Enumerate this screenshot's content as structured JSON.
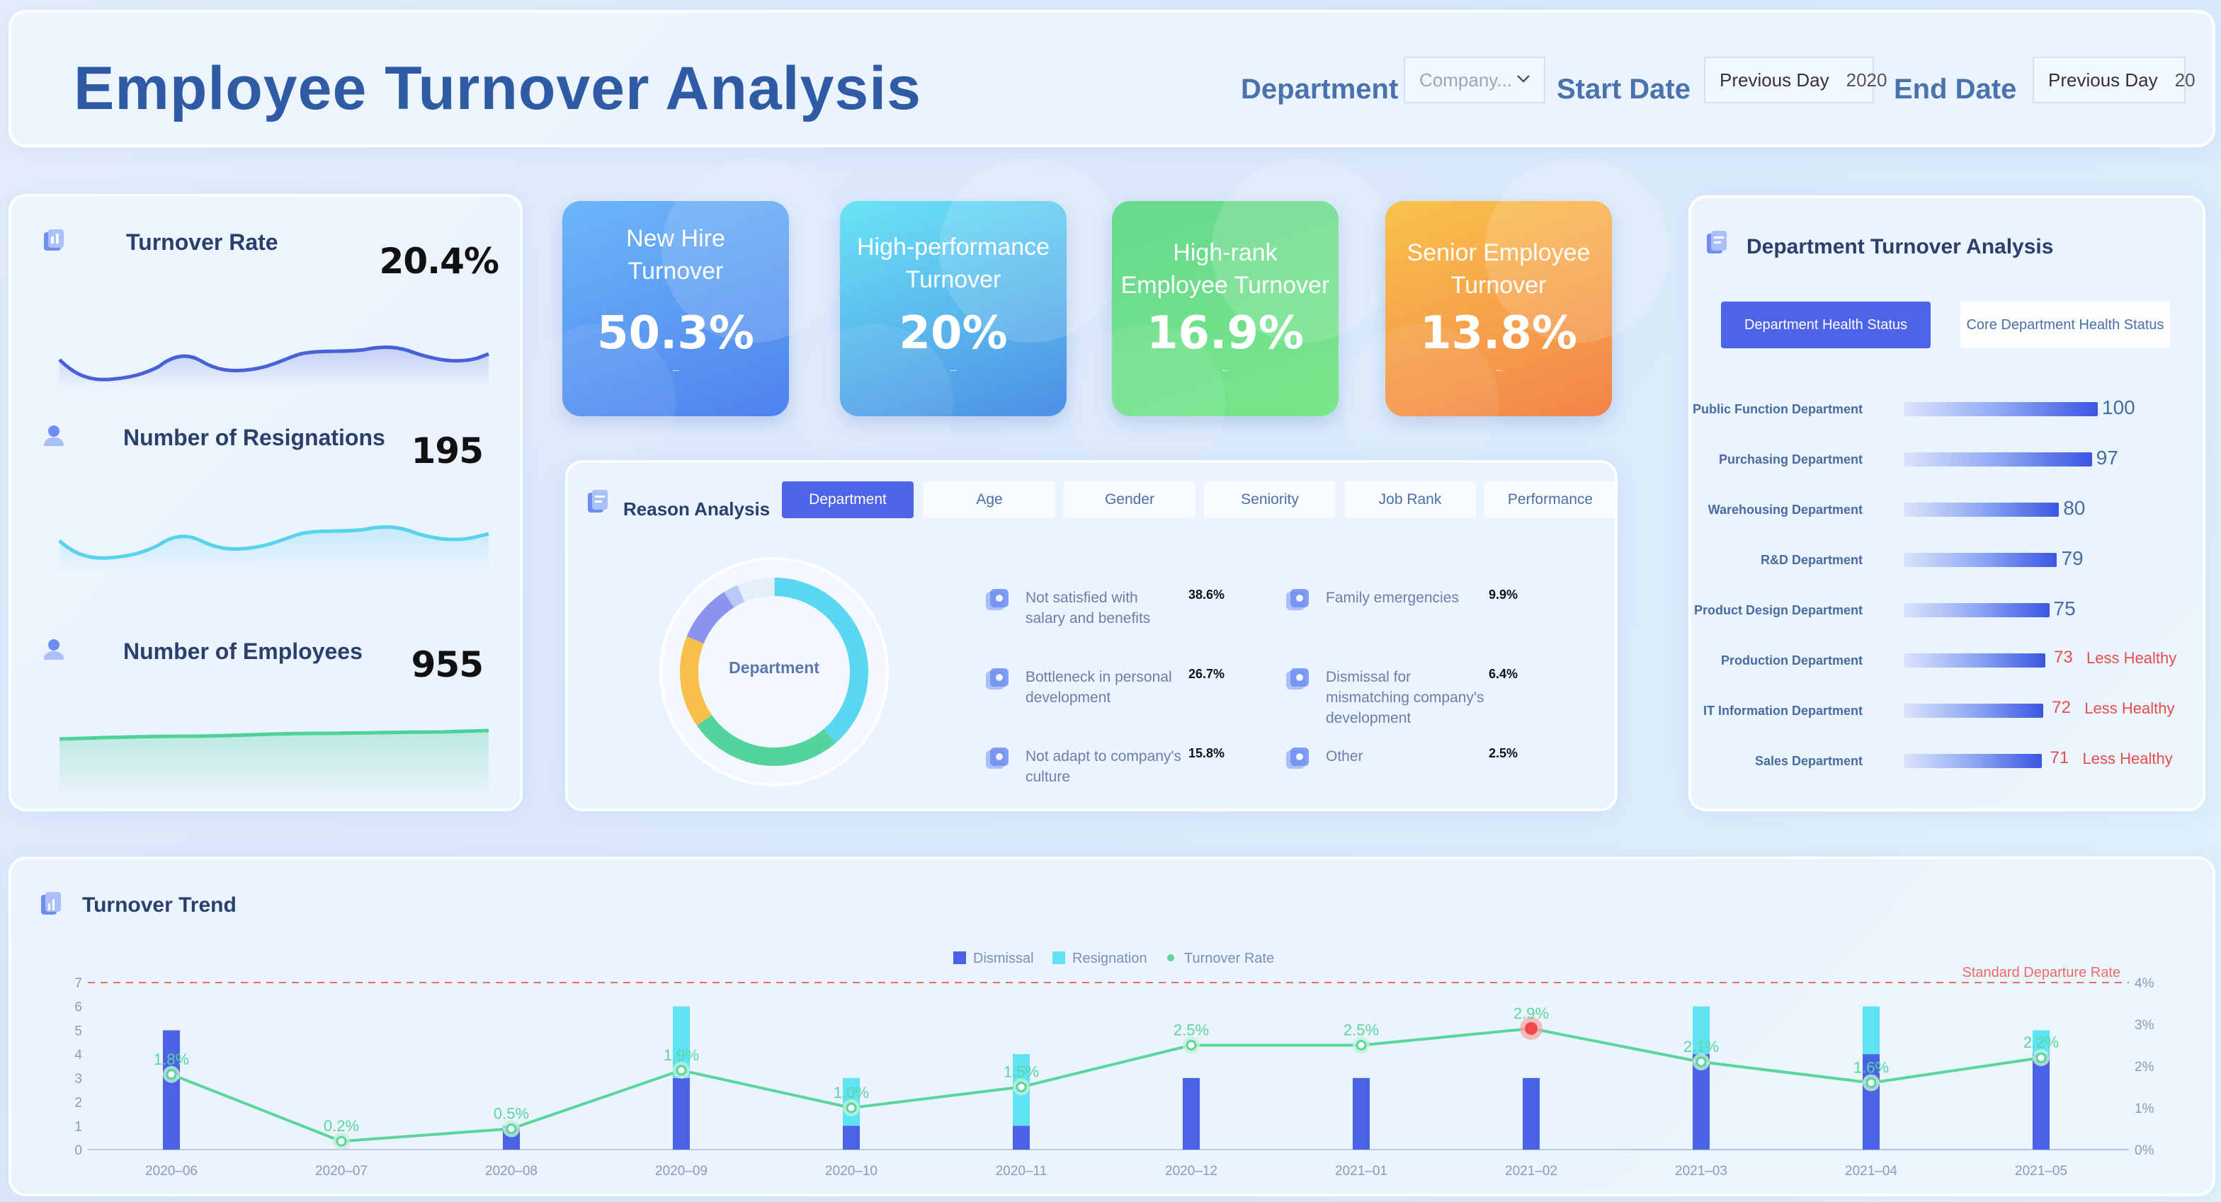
{
  "header": {
    "title": "Employee Turnover Analysis",
    "department_label": "Department",
    "department_value": "Company...",
    "start_label": "Start Date",
    "start_value": "Previous Day",
    "start_sub": "2020",
    "end_label": "End Date",
    "end_value": "Previous Day",
    "end_sub": "20"
  },
  "metrics": [
    {
      "label": "Turnover Rate",
      "value": "20.4%",
      "color": "#4961d8"
    },
    {
      "label": "Number of Resignations",
      "value": "195",
      "color": "#57d3ee"
    },
    {
      "label": "Number of Employees",
      "value": "955",
      "color": "#4cd39a"
    }
  ],
  "kpis": [
    {
      "title1": "New Hire",
      "title2": "Turnover",
      "value": "50.3%",
      "dash": "--"
    },
    {
      "title1": "High-performance",
      "title2": "Turnover",
      "value": "20%",
      "dash": "--"
    },
    {
      "title1": "High-rank",
      "title2": "Employee Turnover",
      "value": "16.9%",
      "dash": "--"
    },
    {
      "title1": "Senior Employee",
      "title2": "Turnover",
      "value": "13.8%",
      "dash": "--"
    }
  ],
  "reason": {
    "title": "Reason Analysis",
    "tabs": [
      "Department",
      "Age",
      "Gender",
      "Seniority",
      "Job Rank",
      "Performance"
    ],
    "active_tab": "Department",
    "donut_label": "Department",
    "items": [
      {
        "line1": "Not satisfied with",
        "line2": "salary and benefits",
        "line3": "",
        "pct": "38.6%",
        "icon": "money-bag-icon"
      },
      {
        "line1": "Family emergencies",
        "line2": "",
        "line3": "",
        "pct": "9.9%",
        "icon": "house-icon"
      },
      {
        "line1": "Bottleneck in personal",
        "line2": "development",
        "line3": "",
        "pct": "26.7%",
        "icon": "user-card-icon"
      },
      {
        "line1": "Dismissal for",
        "line2": "mismatching company's",
        "line3": "development",
        "pct": "6.4%",
        "icon": "document-icon"
      },
      {
        "line1": "Not adapt to company's",
        "line2": "culture",
        "line3": "",
        "pct": "15.8%",
        "icon": "building-icon"
      },
      {
        "line1": "Other",
        "line2": "",
        "line3": "",
        "pct": "2.5%",
        "icon": "grid-icon"
      }
    ]
  },
  "department": {
    "title": "Department Turnover Analysis",
    "tab_active": "Department Health Status",
    "tab_other": "Core Department Health Status",
    "less_healthy_label": "Less Healthy",
    "rows": [
      {
        "name": "Public Function Department",
        "value": 100,
        "healthy": true
      },
      {
        "name": "Purchasing Department",
        "value": 97,
        "healthy": true
      },
      {
        "name": "Warehousing Department",
        "value": 80,
        "healthy": true
      },
      {
        "name": "R&D Department",
        "value": 79,
        "healthy": true
      },
      {
        "name": "Product Design Department",
        "value": 75,
        "healthy": true
      },
      {
        "name": "Production Department",
        "value": 73,
        "healthy": false
      },
      {
        "name": "IT Information Department",
        "value": 72,
        "healthy": false
      },
      {
        "name": "Sales Department",
        "value": 71,
        "healthy": false
      }
    ]
  },
  "trend": {
    "title": "Turnover Trend"
  },
  "chart_data": {
    "type": "bar",
    "categories": [
      "2020–06",
      "2020–07",
      "2020–08",
      "2020–09",
      "2020–10",
      "2020–11",
      "2020–12",
      "2021–01",
      "2021–02",
      "2021–03",
      "2021–04",
      "2021–05"
    ],
    "series": [
      {
        "name": "Dismissal",
        "type": "bar",
        "stack": "a",
        "color": "#4a63e6",
        "values": [
          5,
          0,
          1,
          3,
          1,
          1,
          3,
          3,
          3,
          4,
          4,
          4
        ]
      },
      {
        "name": "Resignation",
        "type": "bar",
        "stack": "a",
        "color": "#5ee3f4",
        "values": [
          0,
          0,
          0,
          3,
          2,
          3,
          0,
          0,
          0,
          2,
          2,
          1
        ]
      },
      {
        "name": "Turnover Rate",
        "type": "line",
        "axis": "right",
        "color": "#5ad69c",
        "values": [
          1.8,
          0.2,
          0.5,
          1.9,
          1.0,
          1.5,
          2.5,
          2.5,
          2.9,
          2.1,
          1.6,
          2.2
        ]
      }
    ],
    "value_labels": [
      "1.8%",
      "0.2%",
      "0.5%",
      "1.9%",
      "1.0%",
      "1.5%",
      "2.5%",
      "2.5%",
      "2.9%",
      "2.1%",
      "1.6%",
      "2.2%"
    ],
    "ylim": [
      0,
      7
    ],
    "y_ticks": [
      "0",
      "1",
      "2",
      "3",
      "4",
      "5",
      "6",
      "7"
    ],
    "y2lim": [
      0,
      4
    ],
    "y2_ticks": [
      "0%",
      "1%",
      "2%",
      "3%",
      "4%"
    ],
    "reference_line": {
      "label": "Standard Departure Rate",
      "value": 7
    },
    "highlight_index": 8,
    "legend": "top-center"
  }
}
